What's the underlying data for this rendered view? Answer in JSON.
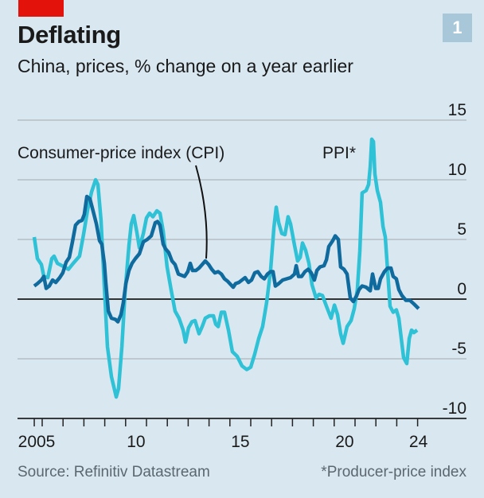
{
  "header": {
    "title": "Deflating",
    "subtitle": "China, prices, % change on a year earlier",
    "chart_number": "1"
  },
  "footer": {
    "source": "Source: Refinitiv Datastream",
    "footnote": "*Producer-price index"
  },
  "colors": {
    "background": "#d8e7f0",
    "brand_red": "#e3120b",
    "cpi": "#0f6a9e",
    "ppi": "#2fc1d6",
    "gridline": "#b5bfc4",
    "zero_line": "#333333"
  },
  "chart_data": {
    "type": "line",
    "title": "Deflating",
    "subtitle": "China, prices, % change on a year earlier",
    "xlabel": "",
    "ylabel": "% change on a year earlier",
    "xlim": [
      2005.0,
      2025.0
    ],
    "ylim": [
      -10,
      15
    ],
    "y_ticks": [
      15,
      10,
      5,
      0,
      -5,
      -10
    ],
    "y_tick_labels": [
      "15",
      "10",
      "5",
      "0",
      "-5",
      "-10"
    ],
    "y_axis_side": "right",
    "x_tick_labels": [
      {
        "year": 2005,
        "label": "2005"
      },
      {
        "year": 2010,
        "label": "10"
      },
      {
        "year": 2015,
        "label": "15"
      },
      {
        "year": 2020,
        "label": "20"
      },
      {
        "year": 2024,
        "label": "24"
      }
    ],
    "grid": true,
    "legend": "inline-labels",
    "annotations": [
      {
        "text": "Consumer-price index (CPI)",
        "series": "CPI"
      },
      {
        "text": "PPI*",
        "series": "PPI"
      }
    ],
    "series": [
      {
        "name": "PPI",
        "label": "PPI*",
        "color": "#2fc1d6",
        "points": [
          [
            2005.62,
            5.2
          ],
          [
            2005.77,
            3.4
          ],
          [
            2005.96,
            2.9
          ],
          [
            2006.08,
            1.9
          ],
          [
            2006.27,
            1.8
          ],
          [
            2006.46,
            3.4
          ],
          [
            2006.57,
            3.6
          ],
          [
            2006.73,
            3.0
          ],
          [
            2006.95,
            2.8
          ],
          [
            2007.26,
            2.5
          ],
          [
            2007.49,
            3.0
          ],
          [
            2007.79,
            3.6
          ],
          [
            2007.98,
            5.4
          ],
          [
            2008.18,
            7.5
          ],
          [
            2008.37,
            9.0
          ],
          [
            2008.56,
            10.0
          ],
          [
            2008.67,
            9.6
          ],
          [
            2008.82,
            6.6
          ],
          [
            2008.98,
            1.0
          ],
          [
            2009.13,
            -4.0
          ],
          [
            2009.32,
            -6.5
          ],
          [
            2009.55,
            -8.2
          ],
          [
            2009.66,
            -7.5
          ],
          [
            2009.82,
            -4.0
          ],
          [
            2009.97,
            0.5
          ],
          [
            2010.16,
            4.5
          ],
          [
            2010.27,
            6.3
          ],
          [
            2010.39,
            7.0
          ],
          [
            2010.54,
            5.6
          ],
          [
            2010.66,
            4.3
          ],
          [
            2010.85,
            5.5
          ],
          [
            2011.0,
            6.8
          ],
          [
            2011.15,
            7.2
          ],
          [
            2011.31,
            6.9
          ],
          [
            2011.5,
            7.4
          ],
          [
            2011.65,
            7.2
          ],
          [
            2011.8,
            5.7
          ],
          [
            2011.99,
            2.7
          ],
          [
            2012.18,
            0.8
          ],
          [
            2012.37,
            -1.0
          ],
          [
            2012.56,
            -1.6
          ],
          [
            2012.76,
            -2.6
          ],
          [
            2012.87,
            -3.6
          ],
          [
            2013.02,
            -2.4
          ],
          [
            2013.18,
            -1.9
          ],
          [
            2013.33,
            -1.8
          ],
          [
            2013.52,
            -2.9
          ],
          [
            2013.67,
            -2.3
          ],
          [
            2013.82,
            -1.6
          ],
          [
            2014.02,
            -1.4
          ],
          [
            2014.21,
            -1.4
          ],
          [
            2014.32,
            -2.1
          ],
          [
            2014.44,
            -2.3
          ],
          [
            2014.59,
            -1.1
          ],
          [
            2014.74,
            -1.1
          ],
          [
            2014.93,
            -2.6
          ],
          [
            2015.12,
            -4.4
          ],
          [
            2015.35,
            -4.8
          ],
          [
            2015.58,
            -5.6
          ],
          [
            2015.81,
            -5.9
          ],
          [
            2016.0,
            -5.7
          ],
          [
            2016.19,
            -4.6
          ],
          [
            2016.38,
            -3.3
          ],
          [
            2016.57,
            -2.3
          ],
          [
            2016.76,
            -0.3
          ],
          [
            2016.95,
            2.4
          ],
          [
            2017.11,
            6.0
          ],
          [
            2017.22,
            7.7
          ],
          [
            2017.34,
            6.4
          ],
          [
            2017.49,
            5.5
          ],
          [
            2017.64,
            5.4
          ],
          [
            2017.79,
            6.9
          ],
          [
            2017.91,
            6.3
          ],
          [
            2018.1,
            4.5
          ],
          [
            2018.25,
            3.2
          ],
          [
            2018.37,
            3.5
          ],
          [
            2018.48,
            4.7
          ],
          [
            2018.63,
            4.1
          ],
          [
            2018.79,
            3.0
          ],
          [
            2018.94,
            1.2
          ],
          [
            2019.13,
            0.1
          ],
          [
            2019.28,
            0.4
          ],
          [
            2019.44,
            0.3
          ],
          [
            2019.63,
            -0.6
          ],
          [
            2019.85,
            -1.6
          ],
          [
            2020.01,
            -0.5
          ],
          [
            2020.16,
            -1.3
          ],
          [
            2020.31,
            -2.9
          ],
          [
            2020.43,
            -3.7
          ],
          [
            2020.62,
            -2.3
          ],
          [
            2020.81,
            -1.8
          ],
          [
            2020.96,
            -0.8
          ],
          [
            2021.11,
            0.8
          ],
          [
            2021.23,
            4.0
          ],
          [
            2021.34,
            8.9
          ],
          [
            2021.53,
            9.1
          ],
          [
            2021.65,
            9.6
          ],
          [
            2021.73,
            11.1
          ],
          [
            2021.8,
            13.4
          ],
          [
            2021.88,
            13.2
          ],
          [
            2021.95,
            10.5
          ],
          [
            2022.07,
            9.1
          ],
          [
            2022.22,
            8.1
          ],
          [
            2022.34,
            6.1
          ],
          [
            2022.45,
            5.2
          ],
          [
            2022.56,
            2.4
          ],
          [
            2022.68,
            -0.6
          ],
          [
            2022.83,
            -1.1
          ],
          [
            2022.98,
            -0.9
          ],
          [
            2023.1,
            -1.6
          ],
          [
            2023.21,
            -3.2
          ],
          [
            2023.33,
            -4.9
          ],
          [
            2023.48,
            -5.4
          ],
          [
            2023.6,
            -3.3
          ],
          [
            2023.71,
            -2.6
          ],
          [
            2023.82,
            -2.8
          ],
          [
            2023.98,
            -2.6
          ]
        ]
      },
      {
        "name": "CPI",
        "label": "Consumer-price index (CPI)",
        "color": "#0f6a9e",
        "points": [
          [
            2005.62,
            1.1
          ],
          [
            2005.77,
            1.3
          ],
          [
            2005.96,
            1.6
          ],
          [
            2006.08,
            1.9
          ],
          [
            2006.19,
            0.9
          ],
          [
            2006.34,
            1.1
          ],
          [
            2006.5,
            1.6
          ],
          [
            2006.65,
            1.4
          ],
          [
            2006.84,
            1.8
          ],
          [
            2006.99,
            2.2
          ],
          [
            2007.15,
            3.1
          ],
          [
            2007.3,
            3.5
          ],
          [
            2007.45,
            4.8
          ],
          [
            2007.6,
            6.2
          ],
          [
            2007.76,
            6.5
          ],
          [
            2007.91,
            6.6
          ],
          [
            2008.02,
            7.1
          ],
          [
            2008.14,
            8.6
          ],
          [
            2008.29,
            8.4
          ],
          [
            2008.44,
            7.4
          ],
          [
            2008.6,
            6.3
          ],
          [
            2008.75,
            4.9
          ],
          [
            2008.86,
            4.6
          ],
          [
            2008.98,
            3.0
          ],
          [
            2009.05,
            1.4
          ],
          [
            2009.17,
            -1.0
          ],
          [
            2009.32,
            -1.6
          ],
          [
            2009.51,
            -1.7
          ],
          [
            2009.63,
            -1.9
          ],
          [
            2009.78,
            -1.3
          ],
          [
            2009.89,
            -0.3
          ],
          [
            2010.01,
            1.3
          ],
          [
            2010.16,
            2.4
          ],
          [
            2010.31,
            3.0
          ],
          [
            2010.47,
            3.4
          ],
          [
            2010.66,
            3.8
          ],
          [
            2010.85,
            4.8
          ],
          [
            2011.04,
            5.0
          ],
          [
            2011.23,
            5.3
          ],
          [
            2011.42,
            6.4
          ],
          [
            2011.53,
            6.5
          ],
          [
            2011.65,
            6.2
          ],
          [
            2011.8,
            4.6
          ],
          [
            2011.92,
            4.2
          ],
          [
            2012.07,
            3.9
          ],
          [
            2012.22,
            3.2
          ],
          [
            2012.37,
            2.9
          ],
          [
            2012.53,
            2.1
          ],
          [
            2012.68,
            2.0
          ],
          [
            2012.83,
            1.9
          ],
          [
            2012.98,
            2.3
          ],
          [
            2013.1,
            3.0
          ],
          [
            2013.21,
            2.4
          ],
          [
            2013.37,
            2.4
          ],
          [
            2013.52,
            2.6
          ],
          [
            2013.67,
            2.9
          ],
          [
            2013.82,
            3.2
          ],
          [
            2013.98,
            2.9
          ],
          [
            2014.13,
            2.5
          ],
          [
            2014.28,
            2.2
          ],
          [
            2014.44,
            2.3
          ],
          [
            2014.59,
            2.1
          ],
          [
            2014.74,
            1.7
          ],
          [
            2014.89,
            1.5
          ],
          [
            2015.05,
            1.2
          ],
          [
            2015.16,
            1.0
          ],
          [
            2015.27,
            1.3
          ],
          [
            2015.43,
            1.4
          ],
          [
            2015.58,
            1.6
          ],
          [
            2015.73,
            1.8
          ],
          [
            2015.89,
            1.4
          ],
          [
            2016.04,
            1.6
          ],
          [
            2016.19,
            2.2
          ],
          [
            2016.34,
            2.3
          ],
          [
            2016.5,
            1.9
          ],
          [
            2016.65,
            1.7
          ],
          [
            2016.8,
            2.1
          ],
          [
            2016.95,
            2.3
          ],
          [
            2017.07,
            2.3
          ],
          [
            2017.18,
            1.1
          ],
          [
            2017.34,
            1.3
          ],
          [
            2017.53,
            1.6
          ],
          [
            2017.72,
            1.7
          ],
          [
            2017.91,
            1.8
          ],
          [
            2018.1,
            2.1
          ],
          [
            2018.18,
            2.8
          ],
          [
            2018.29,
            1.9
          ],
          [
            2018.44,
            1.9
          ],
          [
            2018.6,
            2.3
          ],
          [
            2018.75,
            2.5
          ],
          [
            2018.9,
            2.2
          ],
          [
            2019.05,
            1.6
          ],
          [
            2019.17,
            2.4
          ],
          [
            2019.32,
            2.7
          ],
          [
            2019.51,
            2.8
          ],
          [
            2019.63,
            3.3
          ],
          [
            2019.74,
            4.4
          ],
          [
            2019.93,
            4.9
          ],
          [
            2020.05,
            5.3
          ],
          [
            2020.2,
            5.0
          ],
          [
            2020.31,
            2.7
          ],
          [
            2020.47,
            2.5
          ],
          [
            2020.62,
            2.1
          ],
          [
            2020.77,
            0.1
          ],
          [
            2020.92,
            -0.2
          ],
          [
            2021.08,
            0.3
          ],
          [
            2021.19,
            0.8
          ],
          [
            2021.34,
            1.1
          ],
          [
            2021.53,
            1.0
          ],
          [
            2021.73,
            0.7
          ],
          [
            2021.84,
            2.1
          ],
          [
            2021.99,
            0.9
          ],
          [
            2022.11,
            0.9
          ],
          [
            2022.22,
            1.7
          ],
          [
            2022.41,
            2.3
          ],
          [
            2022.56,
            2.6
          ],
          [
            2022.72,
            2.6
          ],
          [
            2022.83,
            1.9
          ],
          [
            2022.98,
            1.7
          ],
          [
            2023.1,
            0.8
          ],
          [
            2023.25,
            0.3
          ],
          [
            2023.44,
            -0.1
          ],
          [
            2023.63,
            -0.1
          ],
          [
            2023.82,
            -0.4
          ],
          [
            2024.05,
            -0.8
          ]
        ]
      }
    ]
  }
}
